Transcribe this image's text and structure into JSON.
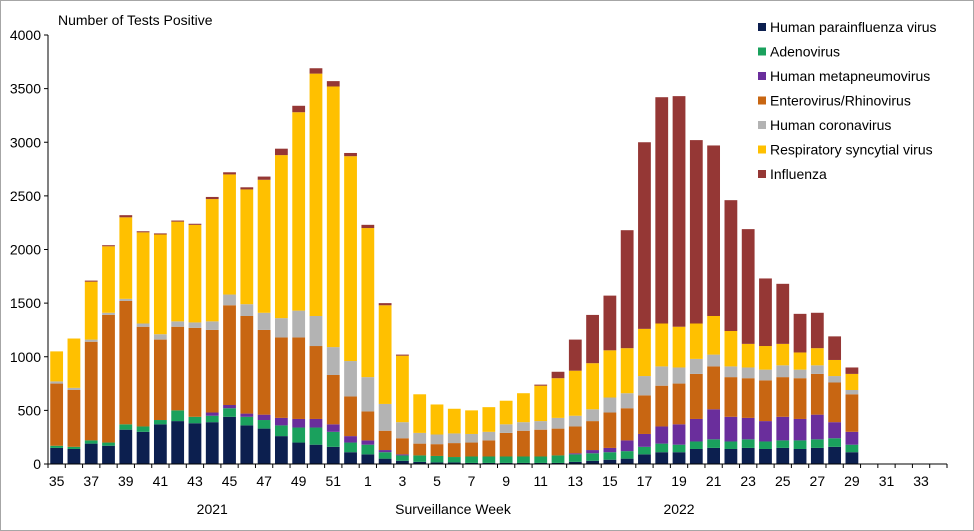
{
  "chart_data": {
    "type": "bar",
    "stacked": true,
    "ylabel": "Number of Tests Positive",
    "xlabel": "Surveillance Week",
    "ylim": [
      0,
      4000
    ],
    "yticks": [
      0,
      500,
      1000,
      1500,
      2000,
      2500,
      3000,
      3500,
      4000
    ],
    "categories": [
      35,
      36,
      37,
      38,
      39,
      40,
      41,
      42,
      43,
      44,
      45,
      46,
      47,
      48,
      49,
      50,
      51,
      52,
      1,
      2,
      3,
      4,
      5,
      6,
      7,
      8,
      9,
      10,
      11,
      12,
      13,
      14,
      15,
      16,
      17,
      18,
      19,
      20,
      21,
      22,
      23,
      24,
      25,
      26,
      27,
      28,
      29,
      30,
      31,
      32,
      33,
      34
    ],
    "xtick_labels": [
      "35",
      "37",
      "39",
      "41",
      "43",
      "45",
      "47",
      "49",
      "51",
      "1",
      "3",
      "5",
      "7",
      "9",
      "11",
      "13",
      "15",
      "17",
      "19",
      "21",
      "23",
      "25",
      "27",
      "29",
      "31",
      "33"
    ],
    "year_labels": [
      {
        "label": "2021",
        "category": 44
      },
      {
        "label": "2022",
        "category": 19
      }
    ],
    "grid": false,
    "legend_position": "top-right",
    "series": [
      {
        "name": "Human parainfluenza virus",
        "color": "#0c1f4f",
        "values": [
          150,
          140,
          190,
          170,
          320,
          300,
          370,
          400,
          380,
          390,
          440,
          360,
          330,
          260,
          200,
          180,
          160,
          110,
          90,
          50,
          30,
          20,
          15,
          15,
          10,
          10,
          10,
          10,
          10,
          10,
          20,
          30,
          40,
          50,
          90,
          110,
          110,
          140,
          150,
          140,
          150,
          140,
          150,
          140,
          150,
          160,
          110,
          0,
          0,
          0,
          0,
          0
        ]
      },
      {
        "name": "Adenovirus",
        "color": "#1aa15d",
        "values": [
          20,
          20,
          30,
          30,
          50,
          50,
          40,
          100,
          60,
          60,
          80,
          80,
          80,
          100,
          140,
          160,
          140,
          90,
          90,
          60,
          50,
          60,
          60,
          50,
          60,
          60,
          60,
          60,
          60,
          70,
          70,
          70,
          70,
          70,
          70,
          80,
          70,
          70,
          80,
          70,
          80,
          70,
          70,
          80,
          80,
          80,
          70,
          0,
          0,
          0,
          0,
          0
        ]
      },
      {
        "name": "Human metapneumovirus",
        "color": "#6a2e9c",
        "values": [
          0,
          0,
          0,
          0,
          0,
          0,
          0,
          0,
          0,
          30,
          30,
          30,
          50,
          70,
          80,
          80,
          70,
          60,
          40,
          20,
          10,
          0,
          0,
          0,
          0,
          0,
          0,
          0,
          0,
          0,
          10,
          30,
          40,
          100,
          120,
          160,
          190,
          210,
          280,
          230,
          200,
          190,
          220,
          200,
          230,
          150,
          120,
          0,
          0,
          0,
          0,
          0
        ]
      },
      {
        "name": "Enterovirus/Rhinovirus",
        "color": "#c86612",
        "values": [
          580,
          530,
          920,
          1190,
          1150,
          930,
          750,
          780,
          830,
          770,
          930,
          910,
          790,
          750,
          760,
          680,
          460,
          370,
          270,
          180,
          150,
          110,
          110,
          130,
          130,
          150,
          220,
          240,
          250,
          250,
          250,
          270,
          330,
          300,
          360,
          380,
          380,
          420,
          400,
          370,
          370,
          380,
          370,
          380,
          380,
          370,
          350,
          0,
          0,
          0,
          0,
          0
        ]
      },
      {
        "name": "Human coronavirus",
        "color": "#b3b3b3",
        "values": [
          20,
          20,
          20,
          20,
          20,
          30,
          50,
          50,
          50,
          80,
          100,
          110,
          160,
          180,
          250,
          280,
          260,
          330,
          320,
          250,
          150,
          100,
          90,
          90,
          80,
          80,
          80,
          80,
          80,
          100,
          100,
          110,
          140,
          140,
          180,
          180,
          150,
          140,
          110,
          100,
          100,
          100,
          110,
          80,
          80,
          60,
          40,
          0,
          0,
          0,
          0,
          0
        ]
      },
      {
        "name": "Respiratory syncytial virus",
        "color": "#ffc000",
        "values": [
          280,
          460,
          540,
          620,
          760,
          850,
          930,
          930,
          910,
          1140,
          1120,
          1070,
          1240,
          1520,
          1850,
          2260,
          2430,
          1910,
          1390,
          920,
          620,
          360,
          280,
          230,
          220,
          230,
          220,
          270,
          330,
          370,
          420,
          430,
          440,
          420,
          440,
          400,
          380,
          330,
          360,
          330,
          220,
          220,
          200,
          160,
          160,
          150,
          150,
          0,
          0,
          0,
          0,
          0
        ]
      },
      {
        "name": "Influenza",
        "color": "#953735",
        "values": [
          0,
          0,
          10,
          10,
          20,
          10,
          10,
          10,
          10,
          20,
          20,
          20,
          30,
          60,
          60,
          50,
          50,
          30,
          30,
          20,
          10,
          0,
          0,
          0,
          0,
          0,
          0,
          0,
          10,
          60,
          290,
          450,
          510,
          1100,
          1740,
          2110,
          2150,
          1710,
          1590,
          1220,
          1070,
          630,
          560,
          360,
          330,
          220,
          60,
          0,
          0,
          0,
          0,
          0
        ]
      }
    ]
  }
}
